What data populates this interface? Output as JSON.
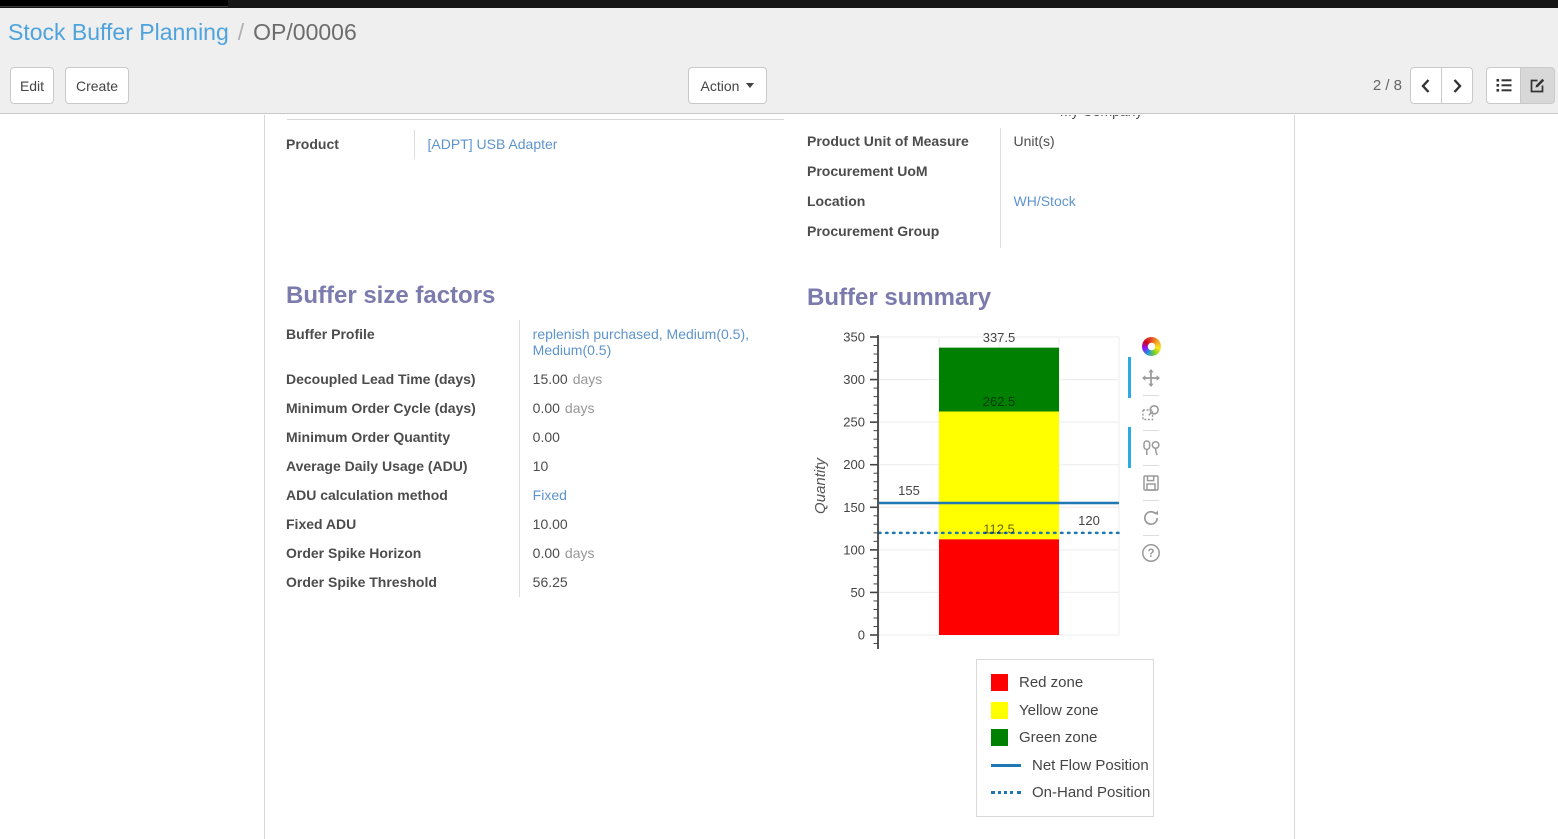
{
  "colors": {
    "accent": "#7c7bad",
    "link": "#5e94cc",
    "breadcrumb_link": "#4fa3dc",
    "red": "#ff0000",
    "yellow": "#ffff00",
    "green": "#008000",
    "line_blue": "#1f77b4",
    "modebar_active": "#29abe2"
  },
  "breadcrumb": {
    "parent": "Stock Buffer Planning",
    "separator": "/",
    "current": "OP/00006"
  },
  "control_panel": {
    "edit_label": "Edit",
    "create_label": "Create",
    "action_label": "Action",
    "pager_value": "2 / 8"
  },
  "view_switcher": {
    "icons": [
      "list-view-icon",
      "form-view-icon"
    ],
    "active": "form-view-icon"
  },
  "form": {
    "clipped_top_value": "My Company",
    "top_left_fields": [
      {
        "label": "Product",
        "value": "[ADPT] USB Adapter",
        "link": true
      }
    ],
    "top_right_fields": [
      {
        "label": "Product Unit of Measure",
        "value": "Unit(s)",
        "link": false
      },
      {
        "label": "Procurement UoM",
        "value": "",
        "link": false
      },
      {
        "label": "Location",
        "value": "WH/Stock",
        "link": true
      },
      {
        "label": "Procurement Group",
        "value": "",
        "link": false
      }
    ],
    "buffer_factors": {
      "title": "Buffer size factors",
      "fields": [
        {
          "label": "Buffer Profile",
          "value": "replenish purchased, Medium(0.5), Medium(0.5)",
          "link": true
        },
        {
          "label": "Decoupled Lead Time (days)",
          "value": "15.00",
          "unit": "days"
        },
        {
          "label": "Minimum Order Cycle (days)",
          "value": "0.00",
          "unit": "days"
        },
        {
          "label": "Minimum Order Quantity",
          "value": "0.00"
        },
        {
          "label": "Average Daily Usage (ADU)",
          "value": "10"
        },
        {
          "label": "ADU calculation method",
          "value": "Fixed",
          "link": true
        },
        {
          "label": "Fixed ADU",
          "value": "10.00"
        },
        {
          "label": "Order Spike Horizon",
          "value": "0.00",
          "unit": "days"
        },
        {
          "label": "Order Spike Threshold",
          "value": "56.25"
        }
      ]
    },
    "buffer_summary": {
      "title": "Buffer summary"
    }
  },
  "chart_data": {
    "type": "bar",
    "stacked": true,
    "categories": [
      ""
    ],
    "series": [
      {
        "name": "Red zone",
        "color": "#ff0000",
        "values": [
          112.5
        ],
        "top_label": "112.5",
        "label_color": "rgba(0,0,0,0.6)"
      },
      {
        "name": "Yellow zone",
        "color": "#ffff00",
        "values": [
          150
        ],
        "top_label": "262.5",
        "label_color": "rgba(0,0,0,0.55)"
      },
      {
        "name": "Green zone",
        "color": "#008000",
        "values": [
          75
        ],
        "top_label": "337.5",
        "label_color": "#444444"
      }
    ],
    "lines": [
      {
        "name": "Net Flow Position",
        "style": "solid",
        "color": "#1f77b4",
        "value": 155,
        "label": "155",
        "label_pos": "left"
      },
      {
        "name": "On-Hand Position",
        "style": "dotted",
        "color": "#1f77b4",
        "value": 120,
        "label": "120",
        "label_pos": "right"
      }
    ],
    "title": "",
    "xlabel": "",
    "ylabel": "Quantity",
    "ylim": [
      0,
      350
    ],
    "yticks": [
      0,
      50,
      100,
      150,
      200,
      250,
      300,
      350
    ],
    "minor_tick_step": 10,
    "grid": true,
    "legend": [
      "Red zone",
      "Yellow zone",
      "Green zone",
      "Net Flow Position",
      "On-Hand Position"
    ],
    "legend_position": "bottom-right"
  },
  "modebar": {
    "icons": [
      "plotly-logo-icon",
      "pan-icon",
      "zoom-icon",
      "compare-hover-icon",
      "save-icon",
      "reset-axes-icon",
      "help-icon"
    ],
    "active": [
      "pan-icon",
      "compare-hover-icon"
    ]
  }
}
